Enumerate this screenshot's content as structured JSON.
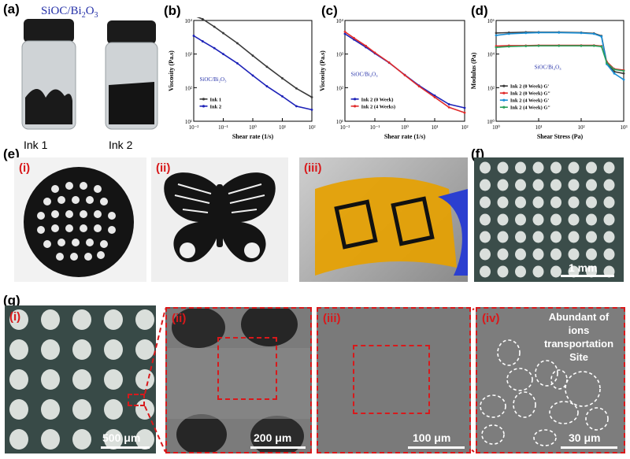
{
  "panel_labels": {
    "a": "(a)",
    "b": "(b)",
    "c": "(c)",
    "d": "(d)",
    "e": "(e)",
    "f": "(f)",
    "g": "(g)"
  },
  "panel_a": {
    "title_main": "SiOC/Bi",
    "title_sub1": "2",
    "title_mid": "O",
    "title_sub2": "3",
    "jar1_label": "Ink 1",
    "jar2_label": "Ink 2"
  },
  "panel_e": {
    "sub_i": "(i)",
    "sub_ii": "(ii)",
    "sub_iii": "(iii)"
  },
  "panel_f": {
    "scale": "1 mm"
  },
  "panel_g": {
    "sub_i": "(i)",
    "sub_ii": "(ii)",
    "sub_iii": "(iii)",
    "sub_iv": "(iv)",
    "scale_i": "500 μm",
    "scale_ii": "200 μm",
    "scale_iii": "100 μm",
    "scale_iv": "30 μm",
    "annotation_lines": [
      "Abundant of",
      "ions",
      "transportation",
      "Site"
    ]
  },
  "colors": {
    "red_dash": "#d8191b",
    "ink1": "#3b3b3b",
    "ink2": "#1d22b8",
    "ink2_4w": "#e02b2b",
    "green": "#2aa05a",
    "cyan": "#1a8fd6"
  },
  "chart_data": [
    {
      "id": "b",
      "type": "line",
      "log_x": true,
      "log_y": true,
      "xlabel": "Shear rate (1/s)",
      "ylabel": "Viscosity (Pa.s)",
      "xlim": [
        0.01,
        100
      ],
      "ylim": [
        10,
        10000
      ],
      "xticks": [
        "10⁻²",
        "10⁻¹",
        "10⁰",
        "10¹",
        "10²"
      ],
      "yticks": [
        "10⁴",
        "10³",
        "10²",
        "10¹"
      ],
      "annotation": "SiOC/Bi₂O₃",
      "series": [
        {
          "name": "Ink 1",
          "color": "#3b3b3b",
          "x": [
            0.01,
            0.02,
            0.05,
            0.1,
            0.3,
            1,
            3,
            10,
            30,
            100
          ],
          "y": [
            14000,
            11000,
            6500,
            4200,
            2100,
            900,
            420,
            190,
            95,
            52
          ]
        },
        {
          "name": "Ink 2",
          "color": "#1d22b8",
          "x": [
            0.01,
            0.02,
            0.05,
            0.1,
            0.3,
            1,
            3,
            10,
            30,
            100
          ],
          "y": [
            3500,
            2400,
            1500,
            1000,
            530,
            230,
            110,
            55,
            28,
            22
          ]
        }
      ]
    },
    {
      "id": "c",
      "type": "line",
      "log_x": true,
      "log_y": true,
      "xlabel": "Shear rate (1/s)",
      "ylabel": "Viscosity (Pa.s)",
      "xlim": [
        0.01,
        100
      ],
      "ylim": [
        10,
        10000
      ],
      "xticks": [
        "10⁻²",
        "10⁻¹",
        "10⁰",
        "10¹",
        "10²"
      ],
      "yticks": [
        "10⁴",
        "10³",
        "10²",
        "10¹"
      ],
      "annotation": "SiOC/Bi₂O₃",
      "series": [
        {
          "name": "Ink 2 (0 Week)",
          "color": "#1d22b8",
          "x": [
            0.01,
            0.02,
            0.05,
            0.1,
            0.3,
            1,
            3,
            10,
            30,
            100
          ],
          "y": [
            4000,
            2700,
            1600,
            1050,
            550,
            240,
            115,
            58,
            32,
            25
          ]
        },
        {
          "name": "Ink 2 (4 Weeks)",
          "color": "#e02b2b",
          "x": [
            0.01,
            0.02,
            0.05,
            0.1,
            0.3,
            1,
            3,
            10,
            30,
            100
          ],
          "y": [
            4600,
            3000,
            1750,
            1100,
            560,
            235,
            110,
            52,
            26,
            18
          ]
        }
      ]
    },
    {
      "id": "d",
      "type": "line",
      "log_x": true,
      "log_y": true,
      "xlabel": "Shear Stress (Pa)",
      "ylabel": "Modulus (Pa)",
      "xlim": [
        1,
        1000
      ],
      "ylim": [
        1,
        1000000
      ],
      "xticks": [
        "10⁰",
        "10¹",
        "10²",
        "10³"
      ],
      "yticks": [
        "10⁶",
        "10⁴",
        "10²",
        "10⁰"
      ],
      "annotation": "SiOC/Bi₂O₃",
      "series": [
        {
          "name": "Ink 2 (0 Week) G'",
          "color": "#3b3b3b",
          "x": [
            1,
            2,
            5,
            10,
            30,
            100,
            200,
            300,
            400,
            600,
            1000
          ],
          "y": [
            180000,
            190000,
            200000,
            200000,
            200000,
            190000,
            170000,
            120000,
            3000,
            900,
            700
          ]
        },
        {
          "name": "Ink 2 (0 Week) G\"",
          "color": "#e02b2b",
          "x": [
            1,
            2,
            5,
            10,
            30,
            100,
            200,
            300,
            400,
            600,
            1000
          ],
          "y": [
            30000,
            32000,
            32000,
            33000,
            33000,
            33000,
            33000,
            30000,
            3500,
            1300,
            1100
          ]
        },
        {
          "name": "Ink 2 (4 Week) G'",
          "color": "#1a8fd6",
          "x": [
            1,
            2,
            5,
            10,
            30,
            100,
            200,
            300,
            400,
            600,
            1000
          ],
          "y": [
            130000,
            160000,
            180000,
            190000,
            190000,
            180000,
            160000,
            110000,
            2500,
            700,
            300
          ]
        },
        {
          "name": "Ink 2 (4 Week) G\"",
          "color": "#2aa05a",
          "x": [
            1,
            2,
            5,
            10,
            30,
            100,
            200,
            300,
            400,
            600,
            1000
          ],
          "y": [
            25000,
            28000,
            30000,
            31000,
            31000,
            31000,
            31000,
            28000,
            3000,
            1200,
            1000
          ]
        }
      ]
    }
  ]
}
